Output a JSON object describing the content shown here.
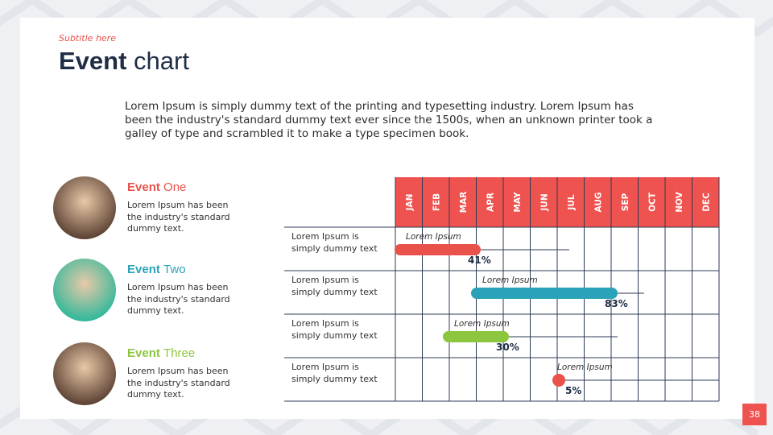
{
  "header": {
    "subtitle": "Subtitle here",
    "title_bold": "Event",
    "title_light": "chart"
  },
  "intro": "Lorem Ipsum is simply dummy text of the printing and typesetting industry. Lorem Ipsum has been the industry's standard dummy text ever since the 1500s, when an unknown printer took a galley of type and scrambled it to make a type specimen book.",
  "events": [
    {
      "name_bold": "Event",
      "name_light": "One",
      "text": "Lorem Ipsum has been the industry's standard dummy text.",
      "color": "#e8524a"
    },
    {
      "name_bold": "Event",
      "name_light": "Two",
      "text": "Lorem Ipsum has been the industry's standard dummy text.",
      "color": "#2aa3b8"
    },
    {
      "name_bold": "Event",
      "name_light": "Three",
      "text": "Lorem Ipsum has been the industry's standard dummy text.",
      "color": "#8cc63f"
    }
  ],
  "timeline": {
    "months": [
      "JAN",
      "FEB",
      "MAR",
      "APR",
      "MAY",
      "JUN",
      "JUL",
      "AUG",
      "SEP",
      "OCT",
      "NOV",
      "DEC"
    ],
    "header_color": "#ef5350",
    "rows": [
      {
        "label": "Lorem Ipsum is simply dummy text",
        "bar_label": "Lorem Ipsum",
        "percent": "41%",
        "color": "#e8524a"
      },
      {
        "label": "Lorem Ipsum is simply dummy text",
        "bar_label": "Lorem Ipsum",
        "percent": "83%",
        "color": "#2aa3b8"
      },
      {
        "label": "Lorem Ipsum is simply dummy text",
        "bar_label": "Lorem Ipsum",
        "percent": "30%",
        "color": "#8cc63f"
      },
      {
        "label": "Lorem Ipsum is simply dummy text",
        "bar_label": "Lorem Ipsum",
        "percent": "5%",
        "color": "#e8524a"
      }
    ]
  },
  "page_number": "38"
}
